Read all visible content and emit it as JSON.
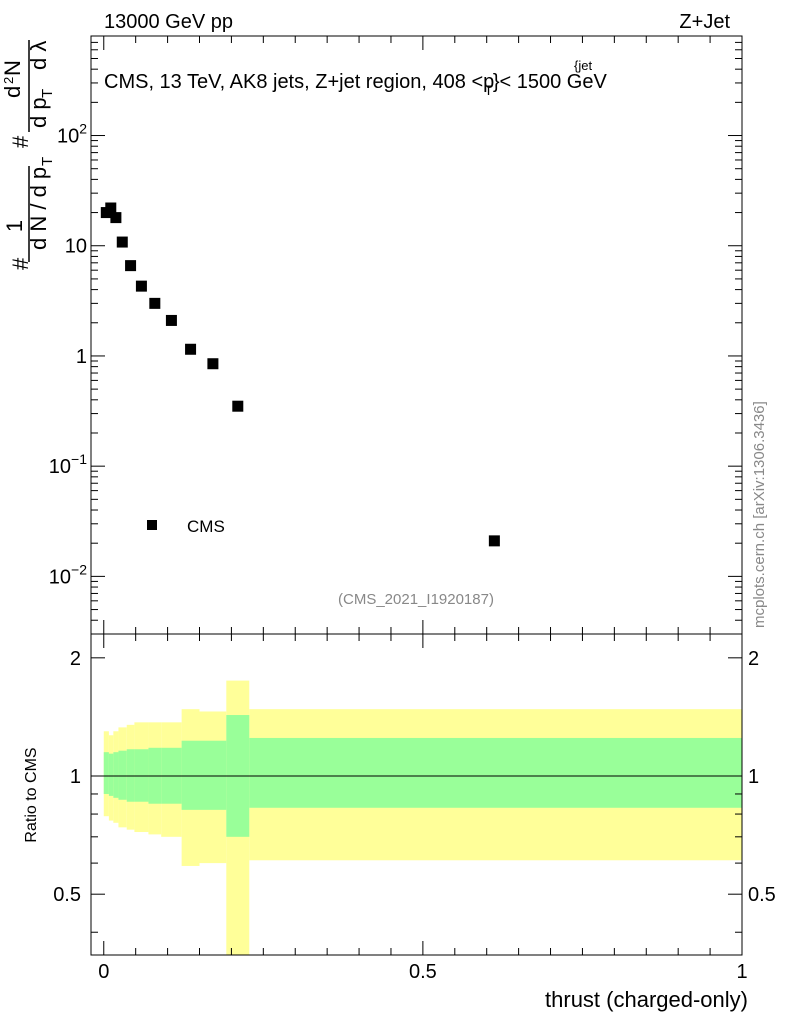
{
  "header": {
    "left": "13000 GeV pp",
    "right": "Z+Jet"
  },
  "side_label": "mcplots.cern.ch [arXiv:1306.3436]",
  "analysis_id": "(CMS_2021_I1920187)",
  "colors": {
    "data": "#000000",
    "band_outer": "#ffff99",
    "band_inner": "#99ff99",
    "watermark": "#888888"
  },
  "chart_data": [
    {
      "type": "scatter",
      "panel": "main",
      "title": "CMS, 13 TeV, AK8 jets, Z+jet region, 408 <p",
      "title_sup": "{jet",
      "title_sub": "T",
      "title_end": "}< 1500 GeV",
      "ylabel_parts": [
        "#",
        "1",
        "d N / d p",
        "T",
        "#",
        "d p",
        "T",
        "d",
        "2",
        "N",
        "d λ"
      ],
      "yscale": "log",
      "ylim": [
        0.003,
        800
      ],
      "xlim": [
        -0.02,
        1.0
      ],
      "y_ticks": [
        {
          "value": 0.01,
          "base": "10",
          "exp": "−2"
        },
        {
          "value": 0.1,
          "base": "10",
          "exp": "−1"
        },
        {
          "value": 1,
          "base": "1",
          "exp": ""
        },
        {
          "value": 10,
          "base": "10",
          "exp": ""
        },
        {
          "value": 100,
          "base": "10",
          "exp": "2"
        }
      ],
      "legend": {
        "label": "CMS",
        "location": "lower-left"
      },
      "series": [
        {
          "name": "CMS",
          "marker": "square",
          "x": [
            0.004,
            0.011,
            0.019,
            0.029,
            0.042,
            0.059,
            0.08,
            0.106,
            0.136,
            0.171,
            0.21,
            0.612
          ],
          "y": [
            20.0,
            22.0,
            18.0,
            10.8,
            6.6,
            4.3,
            3.0,
            2.1,
            1.15,
            0.85,
            0.35,
            0.021
          ]
        }
      ]
    },
    {
      "type": "area",
      "panel": "ratio",
      "ylabel": "Ratio to CMS",
      "xlabel": "thrust (charged-only)",
      "xlim": [
        -0.02,
        1.0
      ],
      "ylim": [
        0.35,
        2.3
      ],
      "y_ticks": [
        0.5,
        1,
        2
      ],
      "x_ticks": [
        0,
        0.5,
        1
      ],
      "reference_line": 1,
      "bins": {
        "edges": [
          0.0,
          0.008,
          0.015,
          0.023,
          0.036,
          0.048,
          0.07,
          0.09,
          0.122,
          0.15,
          0.192,
          0.228,
          1.0
        ],
        "outer_low": [
          0.79,
          0.77,
          0.76,
          0.74,
          0.73,
          0.72,
          0.71,
          0.7,
          0.59,
          0.6,
          0.33,
          0.61
        ],
        "outer_high": [
          1.3,
          1.27,
          1.3,
          1.33,
          1.35,
          1.37,
          1.37,
          1.37,
          1.48,
          1.46,
          1.75,
          1.48
        ],
        "inner_low": [
          0.9,
          0.89,
          0.88,
          0.87,
          0.86,
          0.86,
          0.85,
          0.85,
          0.82,
          0.82,
          0.7,
          0.83
        ],
        "inner_high": [
          1.15,
          1.14,
          1.15,
          1.16,
          1.17,
          1.17,
          1.18,
          1.18,
          1.23,
          1.23,
          1.43,
          1.25
        ]
      }
    }
  ]
}
